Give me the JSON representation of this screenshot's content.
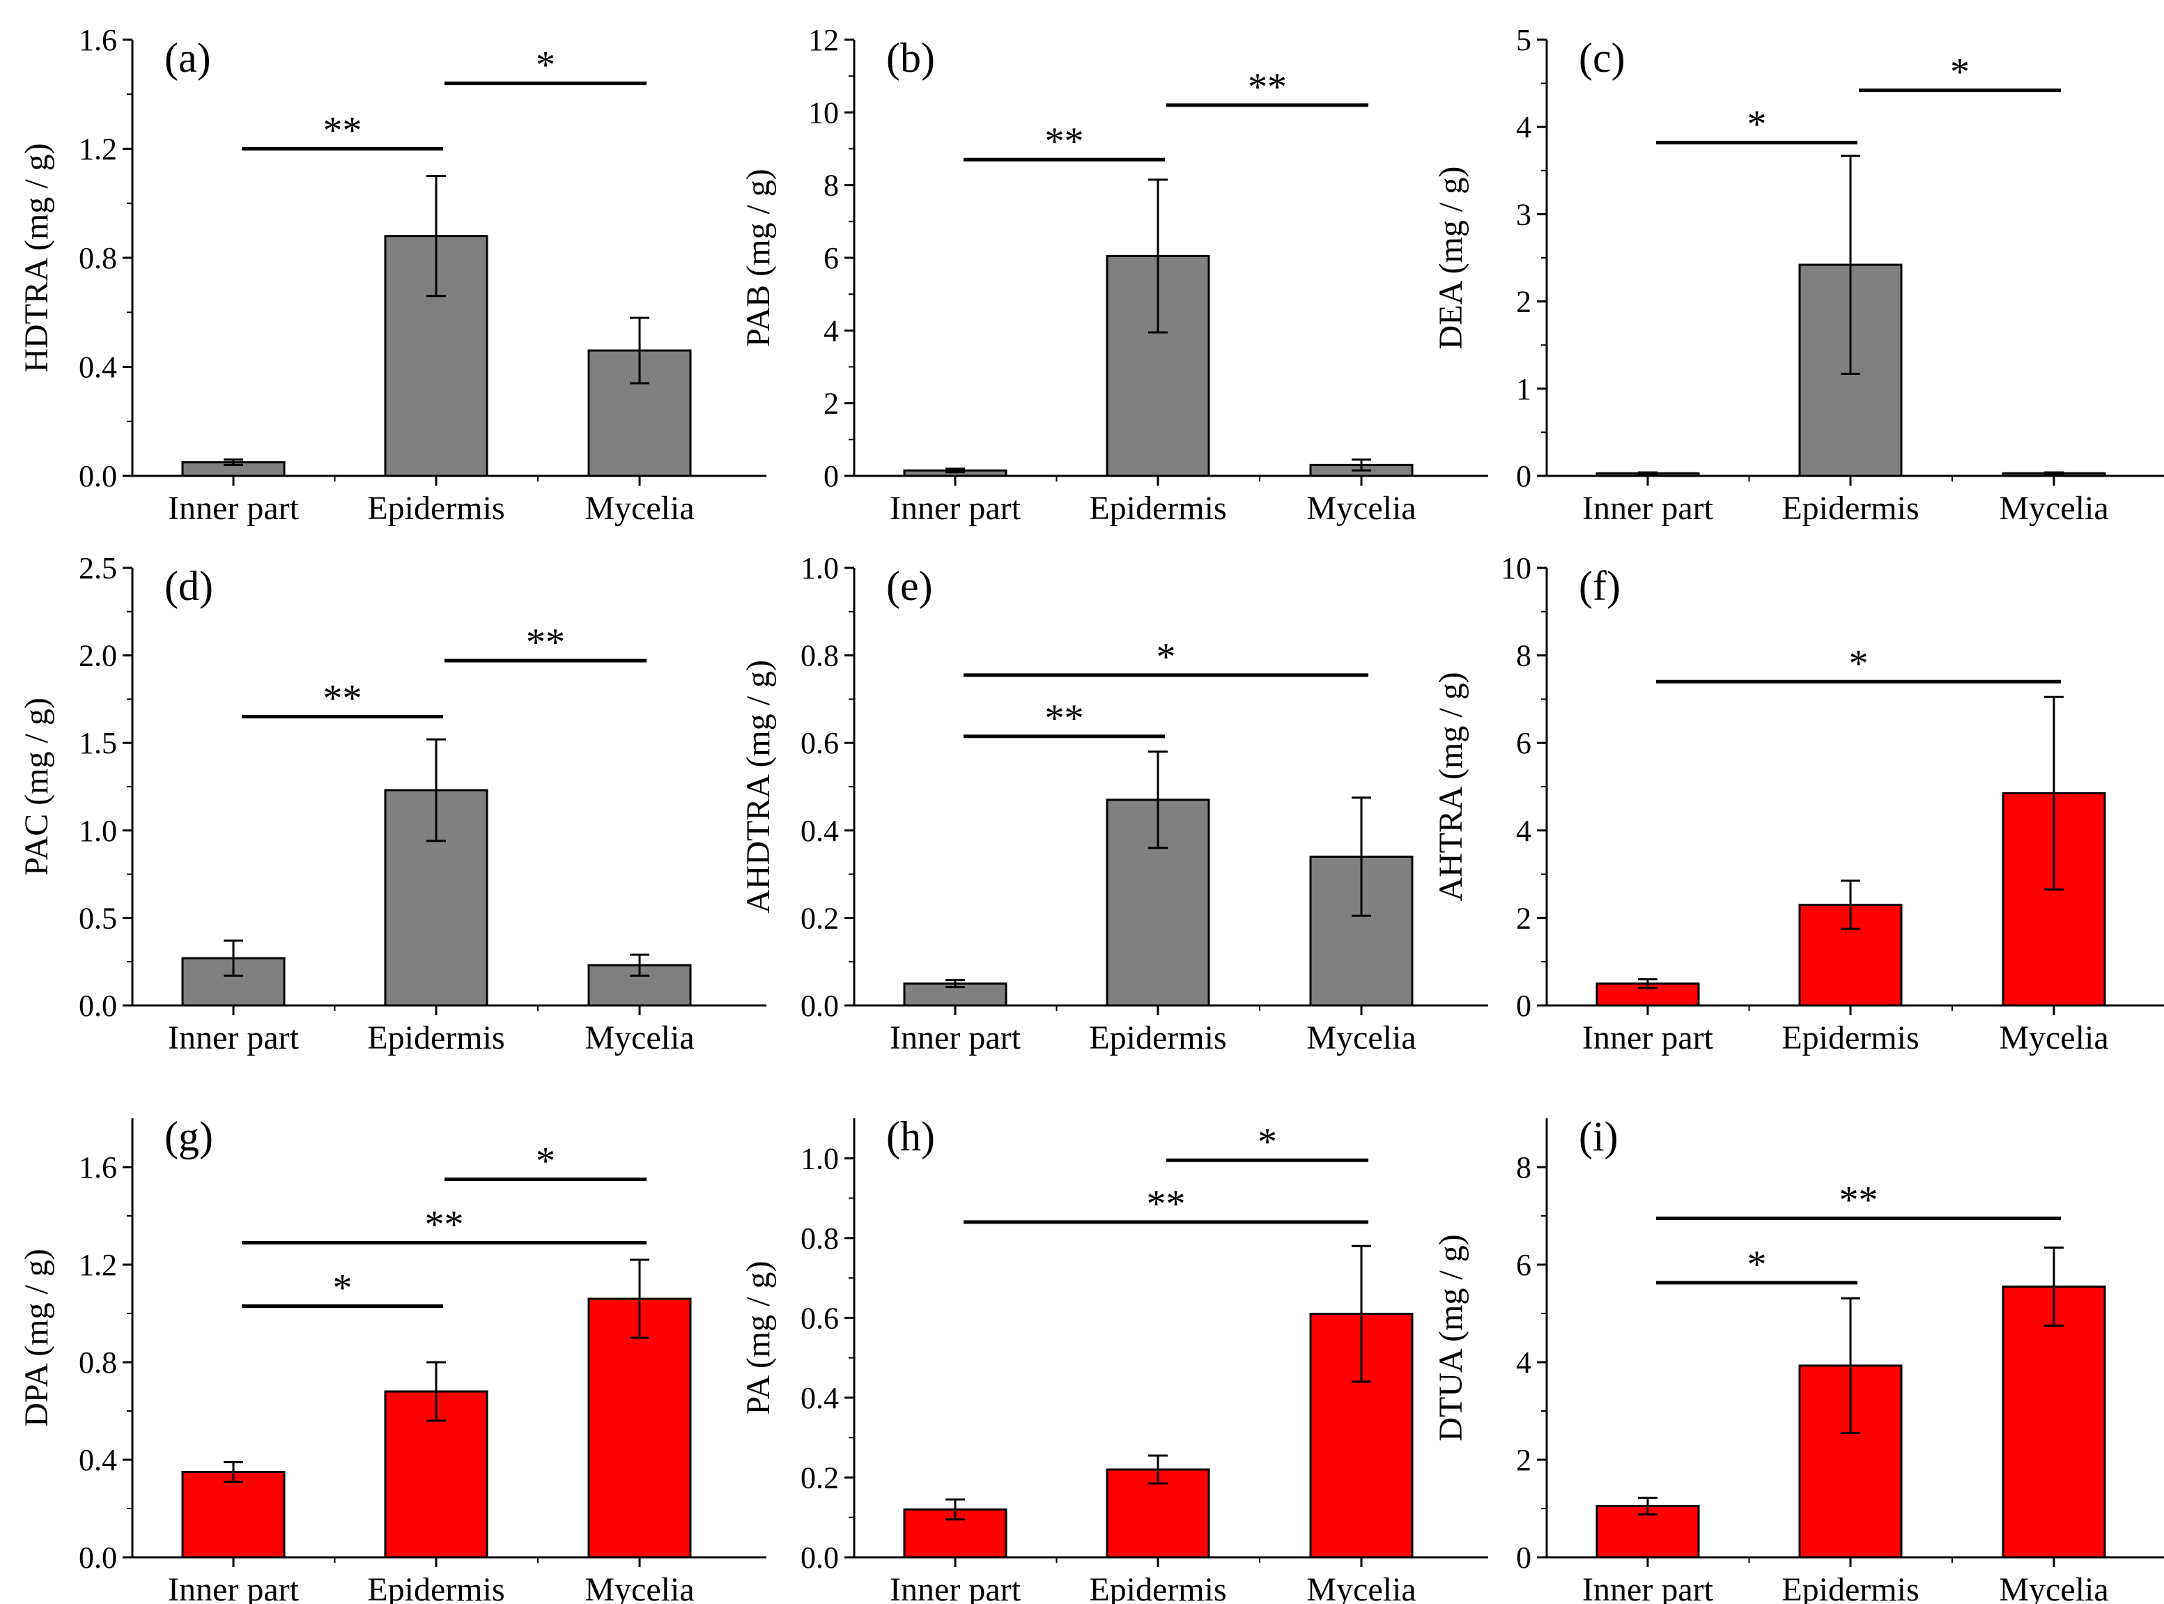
{
  "figure": {
    "colors": {
      "gray": "#808080",
      "red": "#ff0000",
      "stroke": "#000000"
    }
  },
  "chart_data": [
    {
      "type": "bar",
      "panel_label": "(a)",
      "ylabel": "HDTRA (mg / g)",
      "categories": [
        "Inner part",
        "Epidermis",
        "Mycelia"
      ],
      "values": [
        0.05,
        0.88,
        0.46
      ],
      "errors": [
        0.01,
        0.22,
        0.12
      ],
      "color": "gray",
      "ylim": [
        0,
        1.6
      ],
      "yticks": [
        "0.0",
        "0.4",
        "0.8",
        "1.2",
        "1.6"
      ],
      "significance": [
        {
          "from": 0,
          "to": 1,
          "y": 1.2,
          "label": "**"
        },
        {
          "from": 1,
          "to": 2,
          "y": 1.44,
          "label": "*"
        }
      ]
    },
    {
      "type": "bar",
      "panel_label": "(b)",
      "ylabel": "PAB (mg / g)",
      "categories": [
        "Inner part",
        "Epidermis",
        "Mycelia"
      ],
      "values": [
        0.15,
        6.05,
        0.3
      ],
      "errors": [
        0.05,
        2.1,
        0.15
      ],
      "color": "gray",
      "ylim": [
        0,
        12
      ],
      "yticks": [
        "0",
        "2",
        "4",
        "6",
        "8",
        "10",
        "12"
      ],
      "significance": [
        {
          "from": 0,
          "to": 1,
          "y": 8.7,
          "label": "**"
        },
        {
          "from": 1,
          "to": 2,
          "y": 10.2,
          "label": "**"
        }
      ]
    },
    {
      "type": "bar",
      "panel_label": "(c)",
      "ylabel": "DEA (mg / g)",
      "categories": [
        "Inner part",
        "Epidermis",
        "Mycelia"
      ],
      "values": [
        0.03,
        2.42,
        0.03
      ],
      "errors": [
        0.01,
        1.25,
        0.01
      ],
      "color": "gray",
      "ylim": [
        0,
        5
      ],
      "yticks": [
        "0",
        "1",
        "2",
        "3",
        "4",
        "5"
      ],
      "significance": [
        {
          "from": 0,
          "to": 1,
          "y": 3.82,
          "label": "*"
        },
        {
          "from": 1,
          "to": 2,
          "y": 4.42,
          "label": "*"
        }
      ]
    },
    {
      "type": "bar",
      "panel_label": "(d)",
      "ylabel": "PAC (mg / g)",
      "categories": [
        "Inner part",
        "Epidermis",
        "Mycelia"
      ],
      "values": [
        0.27,
        1.23,
        0.23
      ],
      "errors": [
        0.1,
        0.29,
        0.06
      ],
      "color": "gray",
      "ylim": [
        0,
        2.5
      ],
      "yticks": [
        "0.0",
        "0.5",
        "1.0",
        "1.5",
        "2.0",
        "2.5"
      ],
      "significance": [
        {
          "from": 0,
          "to": 1,
          "y": 1.65,
          "label": "**"
        },
        {
          "from": 1,
          "to": 2,
          "y": 1.97,
          "label": "**"
        }
      ]
    },
    {
      "type": "bar",
      "panel_label": "(e)",
      "ylabel": "AHDTRA (mg / g)",
      "categories": [
        "Inner part",
        "Epidermis",
        "Mycelia"
      ],
      "values": [
        0.05,
        0.47,
        0.34
      ],
      "errors": [
        0.008,
        0.11,
        0.135
      ],
      "color": "gray",
      "ylim": [
        0,
        1.0
      ],
      "yticks": [
        "0.0",
        "0.2",
        "0.4",
        "0.6",
        "0.8",
        "1.0"
      ],
      "significance": [
        {
          "from": 0,
          "to": 1,
          "y": 0.615,
          "label": "**"
        },
        {
          "from": 0,
          "to": 2,
          "y": 0.755,
          "label": "*"
        }
      ]
    },
    {
      "type": "bar",
      "panel_label": "(f)",
      "ylabel": "AHTRA (mg / g)",
      "categories": [
        "Inner part",
        "Epidermis",
        "Mycelia"
      ],
      "values": [
        0.5,
        2.3,
        4.85
      ],
      "errors": [
        0.1,
        0.55,
        2.2
      ],
      "color": "red",
      "ylim": [
        0,
        10
      ],
      "yticks": [
        "0",
        "2",
        "4",
        "6",
        "8",
        "10"
      ],
      "significance": [
        {
          "from": 0,
          "to": 2,
          "y": 7.4,
          "label": "*"
        }
      ]
    },
    {
      "type": "bar",
      "panel_label": "(g)",
      "ylabel": "DPA (mg / g)",
      "categories": [
        "Inner part",
        "Epidermis",
        "Mycelia"
      ],
      "values": [
        0.35,
        0.68,
        1.06
      ],
      "errors": [
        0.04,
        0.12,
        0.16
      ],
      "color": "red",
      "ylim": [
        0,
        1.8
      ],
      "yticks": [
        "0.0",
        "0.4",
        "0.8",
        "1.2",
        "1.6"
      ],
      "significance": [
        {
          "from": 0,
          "to": 1,
          "y": 1.03,
          "label": "*"
        },
        {
          "from": 0,
          "to": 2,
          "y": 1.29,
          "label": "**"
        },
        {
          "from": 1,
          "to": 2,
          "y": 1.55,
          "label": "*"
        }
      ]
    },
    {
      "type": "bar",
      "panel_label": "(h)",
      "ylabel": "PA (mg / g)",
      "categories": [
        "Inner part",
        "Epidermis",
        "Mycelia"
      ],
      "values": [
        0.12,
        0.22,
        0.61
      ],
      "errors": [
        0.025,
        0.035,
        0.17
      ],
      "color": "red",
      "ylim": [
        0,
        1.1
      ],
      "yticks": [
        "0.0",
        "0.2",
        "0.4",
        "0.6",
        "0.8",
        "1.0"
      ],
      "significance": [
        {
          "from": 0,
          "to": 2,
          "y": 0.84,
          "label": "**"
        },
        {
          "from": 1,
          "to": 2,
          "y": 0.995,
          "label": "*"
        }
      ]
    },
    {
      "type": "bar",
      "panel_label": "(i)",
      "ylabel": "DTUA (mg / g)",
      "categories": [
        "Inner part",
        "Epidermis",
        "Mycelia"
      ],
      "values": [
        1.05,
        3.93,
        5.55
      ],
      "errors": [
        0.17,
        1.38,
        0.8
      ],
      "color": "red",
      "ylim": [
        0,
        9
      ],
      "yticks": [
        "0",
        "2",
        "4",
        "6",
        "8"
      ],
      "significance": [
        {
          "from": 0,
          "to": 1,
          "y": 5.63,
          "label": "*"
        },
        {
          "from": 0,
          "to": 2,
          "y": 6.95,
          "label": "**"
        }
      ]
    }
  ]
}
